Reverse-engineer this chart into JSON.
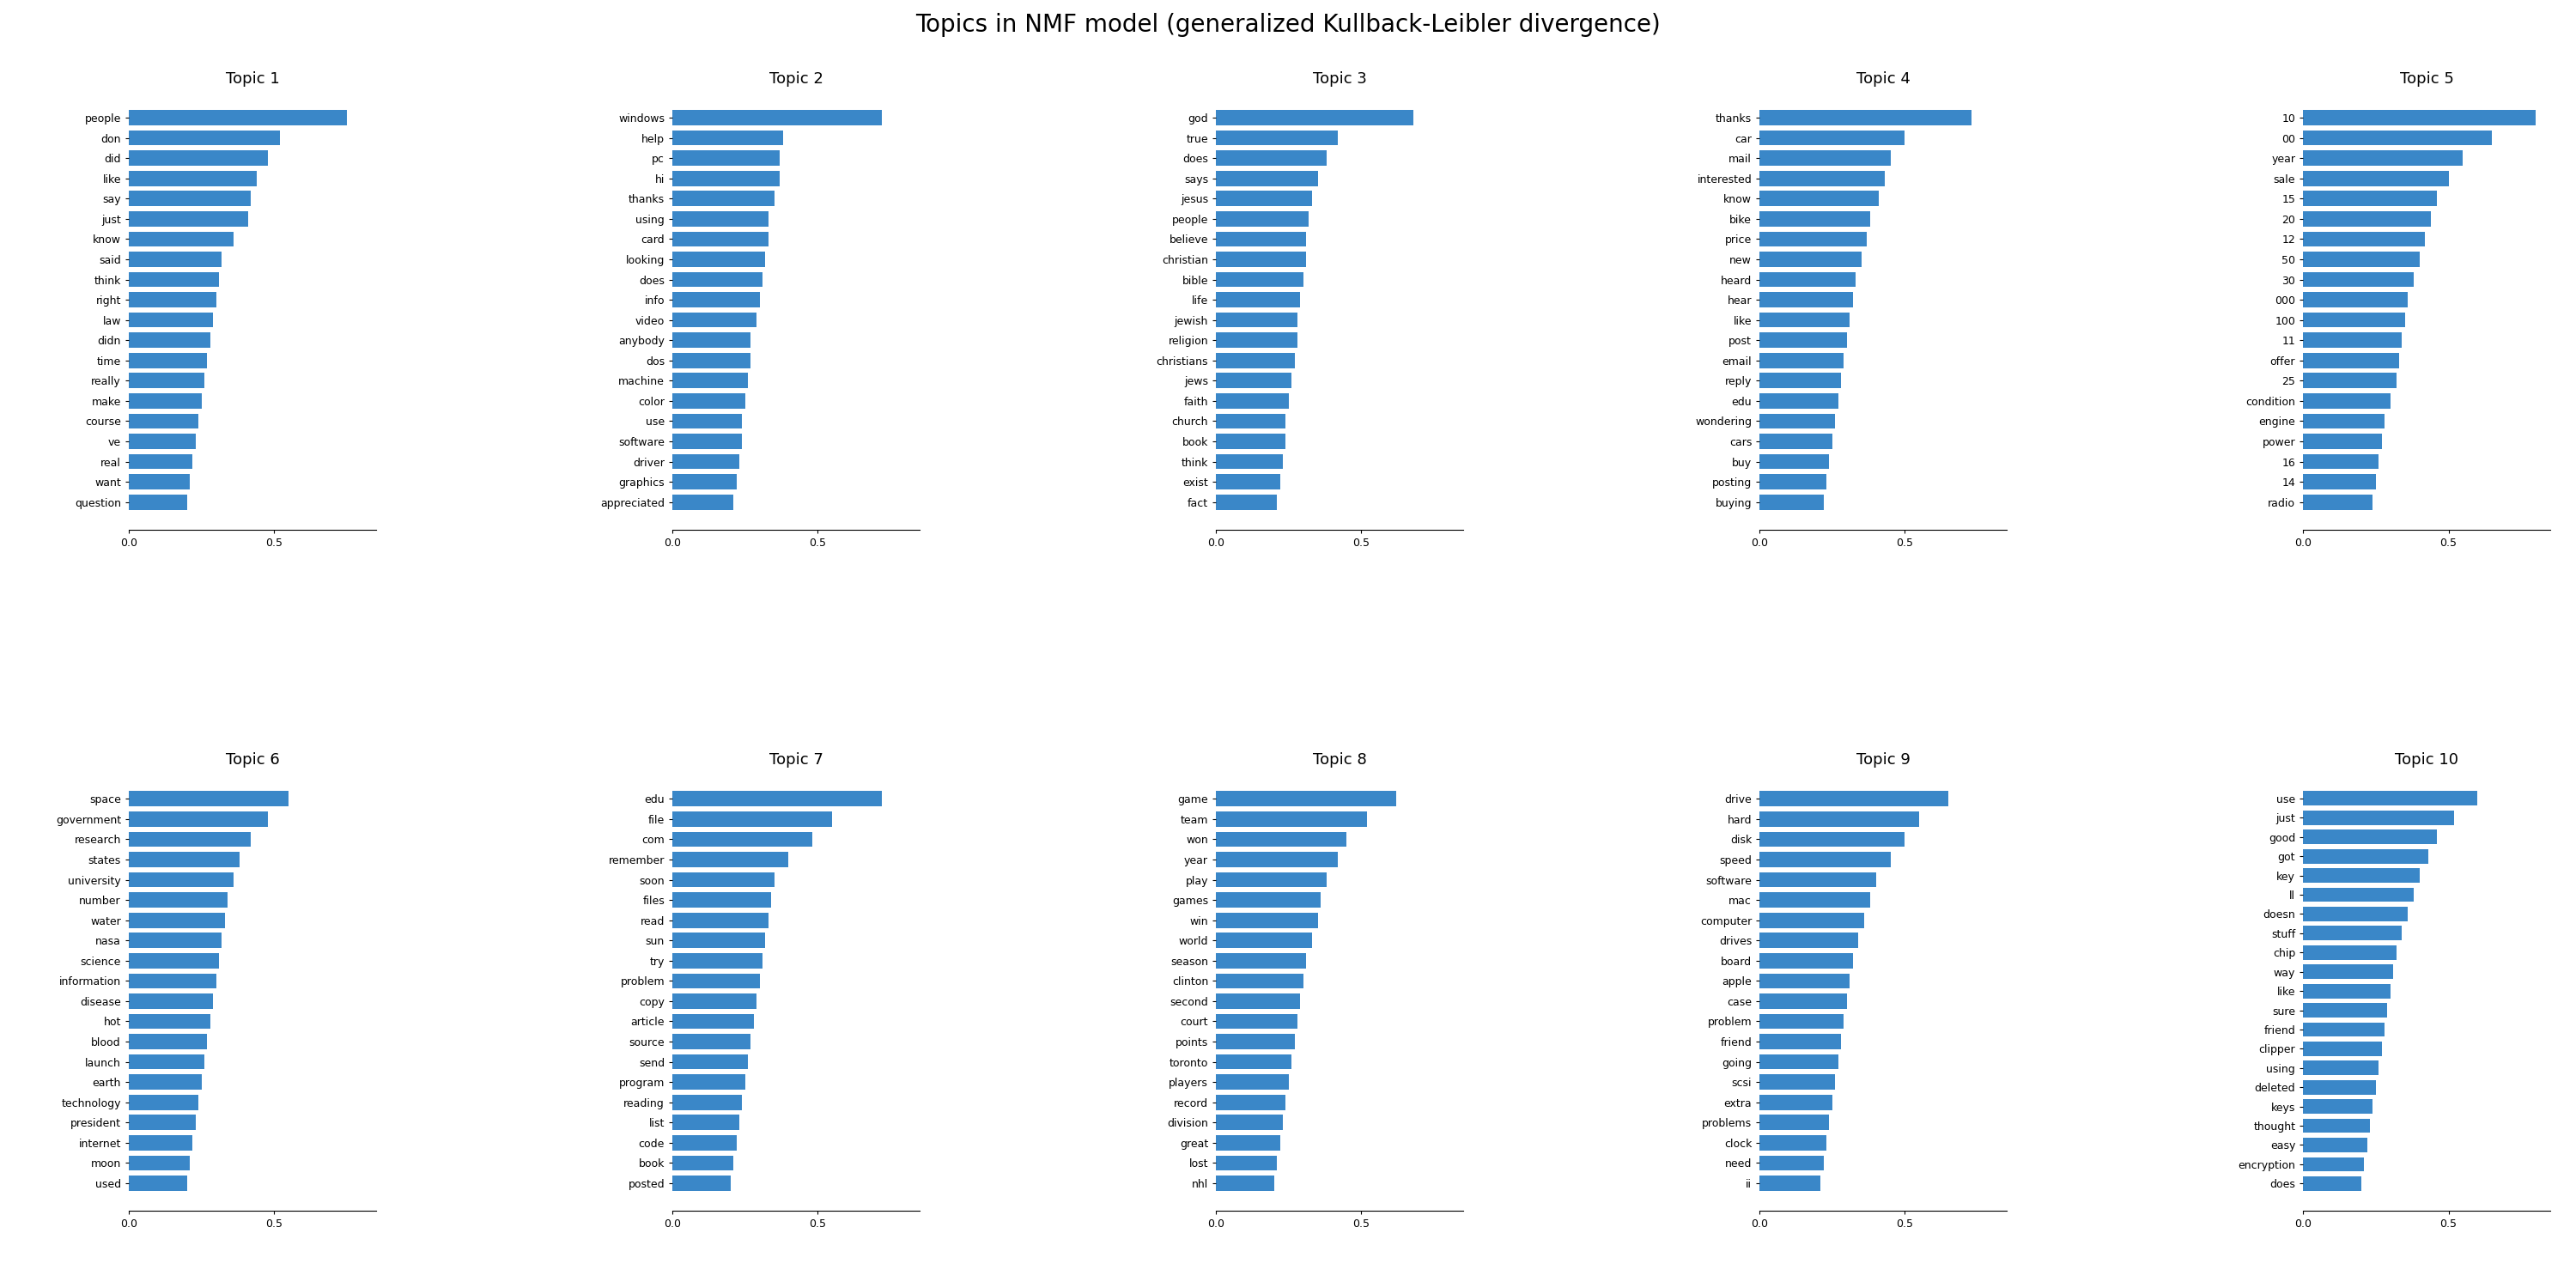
{
  "title": "Topics in NMF model (generalized Kullback-Leibler divergence)",
  "bar_color": "#3a87c8",
  "topics": [
    {
      "title": "Topic 1",
      "words": [
        "people",
        "don",
        "did",
        "like",
        "say",
        "just",
        "know",
        "said",
        "think",
        "right",
        "law",
        "didn",
        "time",
        "really",
        "make",
        "course",
        "ve",
        "real",
        "want",
        "question"
      ],
      "values": [
        0.75,
        0.52,
        0.48,
        0.44,
        0.42,
        0.41,
        0.36,
        0.32,
        0.31,
        0.3,
        0.29,
        0.28,
        0.27,
        0.26,
        0.25,
        0.24,
        0.23,
        0.22,
        0.21,
        0.2
      ]
    },
    {
      "title": "Topic 2",
      "words": [
        "windows",
        "help",
        "pc",
        "hi",
        "thanks",
        "using",
        "card",
        "looking",
        "does",
        "info",
        "video",
        "anybody",
        "dos",
        "machine",
        "color",
        "use",
        "software",
        "driver",
        "graphics",
        "appreciated"
      ],
      "values": [
        0.72,
        0.38,
        0.37,
        0.37,
        0.35,
        0.33,
        0.33,
        0.32,
        0.31,
        0.3,
        0.29,
        0.27,
        0.27,
        0.26,
        0.25,
        0.24,
        0.24,
        0.23,
        0.22,
        0.21
      ]
    },
    {
      "title": "Topic 3",
      "words": [
        "god",
        "true",
        "does",
        "says",
        "jesus",
        "people",
        "believe",
        "christian",
        "bible",
        "life",
        "jewish",
        "religion",
        "christians",
        "jews",
        "faith",
        "church",
        "book",
        "think",
        "exist",
        "fact"
      ],
      "values": [
        0.68,
        0.42,
        0.38,
        0.35,
        0.33,
        0.32,
        0.31,
        0.31,
        0.3,
        0.29,
        0.28,
        0.28,
        0.27,
        0.26,
        0.25,
        0.24,
        0.24,
        0.23,
        0.22,
        0.21
      ]
    },
    {
      "title": "Topic 4",
      "words": [
        "thanks",
        "car",
        "mail",
        "interested",
        "know",
        "bike",
        "price",
        "new",
        "heard",
        "hear",
        "like",
        "post",
        "email",
        "reply",
        "edu",
        "wondering",
        "cars",
        "buy",
        "posting",
        "buying"
      ],
      "values": [
        0.73,
        0.5,
        0.45,
        0.43,
        0.41,
        0.38,
        0.37,
        0.35,
        0.33,
        0.32,
        0.31,
        0.3,
        0.29,
        0.28,
        0.27,
        0.26,
        0.25,
        0.24,
        0.23,
        0.22
      ]
    },
    {
      "title": "Topic 5",
      "words": [
        "10",
        "00",
        "year",
        "sale",
        "15",
        "20",
        "12",
        "50",
        "30",
        "000",
        "100",
        "11",
        "offer",
        "25",
        "condition",
        "engine",
        "power",
        "16",
        "14",
        "radio"
      ],
      "values": [
        0.8,
        0.65,
        0.55,
        0.5,
        0.46,
        0.44,
        0.42,
        0.4,
        0.38,
        0.36,
        0.35,
        0.34,
        0.33,
        0.32,
        0.3,
        0.28,
        0.27,
        0.26,
        0.25,
        0.24
      ]
    },
    {
      "title": "Topic 6",
      "words": [
        "space",
        "government",
        "research",
        "states",
        "university",
        "number",
        "water",
        "nasa",
        "science",
        "information",
        "disease",
        "hot",
        "blood",
        "launch",
        "earth",
        "technology",
        "president",
        "internet",
        "moon",
        "used"
      ],
      "values": [
        0.55,
        0.48,
        0.42,
        0.38,
        0.36,
        0.34,
        0.33,
        0.32,
        0.31,
        0.3,
        0.29,
        0.28,
        0.27,
        0.26,
        0.25,
        0.24,
        0.23,
        0.22,
        0.21,
        0.2
      ]
    },
    {
      "title": "Topic 7",
      "words": [
        "edu",
        "file",
        "com",
        "remember",
        "soon",
        "files",
        "read",
        "sun",
        "try",
        "problem",
        "copy",
        "article",
        "source",
        "send",
        "program",
        "reading",
        "list",
        "code",
        "book",
        "posted"
      ],
      "values": [
        0.72,
        0.55,
        0.48,
        0.4,
        0.35,
        0.34,
        0.33,
        0.32,
        0.31,
        0.3,
        0.29,
        0.28,
        0.27,
        0.26,
        0.25,
        0.24,
        0.23,
        0.22,
        0.21,
        0.2
      ]
    },
    {
      "title": "Topic 8",
      "words": [
        "game",
        "team",
        "won",
        "year",
        "play",
        "games",
        "win",
        "world",
        "season",
        "clinton",
        "second",
        "court",
        "points",
        "toronto",
        "players",
        "record",
        "division",
        "great",
        "lost",
        "nhl"
      ],
      "values": [
        0.62,
        0.52,
        0.45,
        0.42,
        0.38,
        0.36,
        0.35,
        0.33,
        0.31,
        0.3,
        0.29,
        0.28,
        0.27,
        0.26,
        0.25,
        0.24,
        0.23,
        0.22,
        0.21,
        0.2
      ]
    },
    {
      "title": "Topic 9",
      "words": [
        "drive",
        "hard",
        "disk",
        "speed",
        "software",
        "mac",
        "computer",
        "drives",
        "board",
        "apple",
        "case",
        "problem",
        "friend",
        "going",
        "scsi",
        "extra",
        "problems",
        "clock",
        "need",
        "ii"
      ],
      "values": [
        0.65,
        0.55,
        0.5,
        0.45,
        0.4,
        0.38,
        0.36,
        0.34,
        0.32,
        0.31,
        0.3,
        0.29,
        0.28,
        0.27,
        0.26,
        0.25,
        0.24,
        0.23,
        0.22,
        0.21
      ]
    },
    {
      "title": "Topic 10",
      "words": [
        "use",
        "just",
        "good",
        "got",
        "key",
        "ll",
        "doesn",
        "stuff",
        "chip",
        "way",
        "like",
        "sure",
        "friend",
        "clipper",
        "using",
        "deleted",
        "keys",
        "thought",
        "easy",
        "encryption",
        "does"
      ],
      "values": [
        0.6,
        0.52,
        0.46,
        0.43,
        0.4,
        0.38,
        0.36,
        0.34,
        0.32,
        0.31,
        0.3,
        0.29,
        0.28,
        0.27,
        0.26,
        0.25,
        0.24,
        0.23,
        0.22,
        0.21,
        0.2
      ]
    }
  ]
}
